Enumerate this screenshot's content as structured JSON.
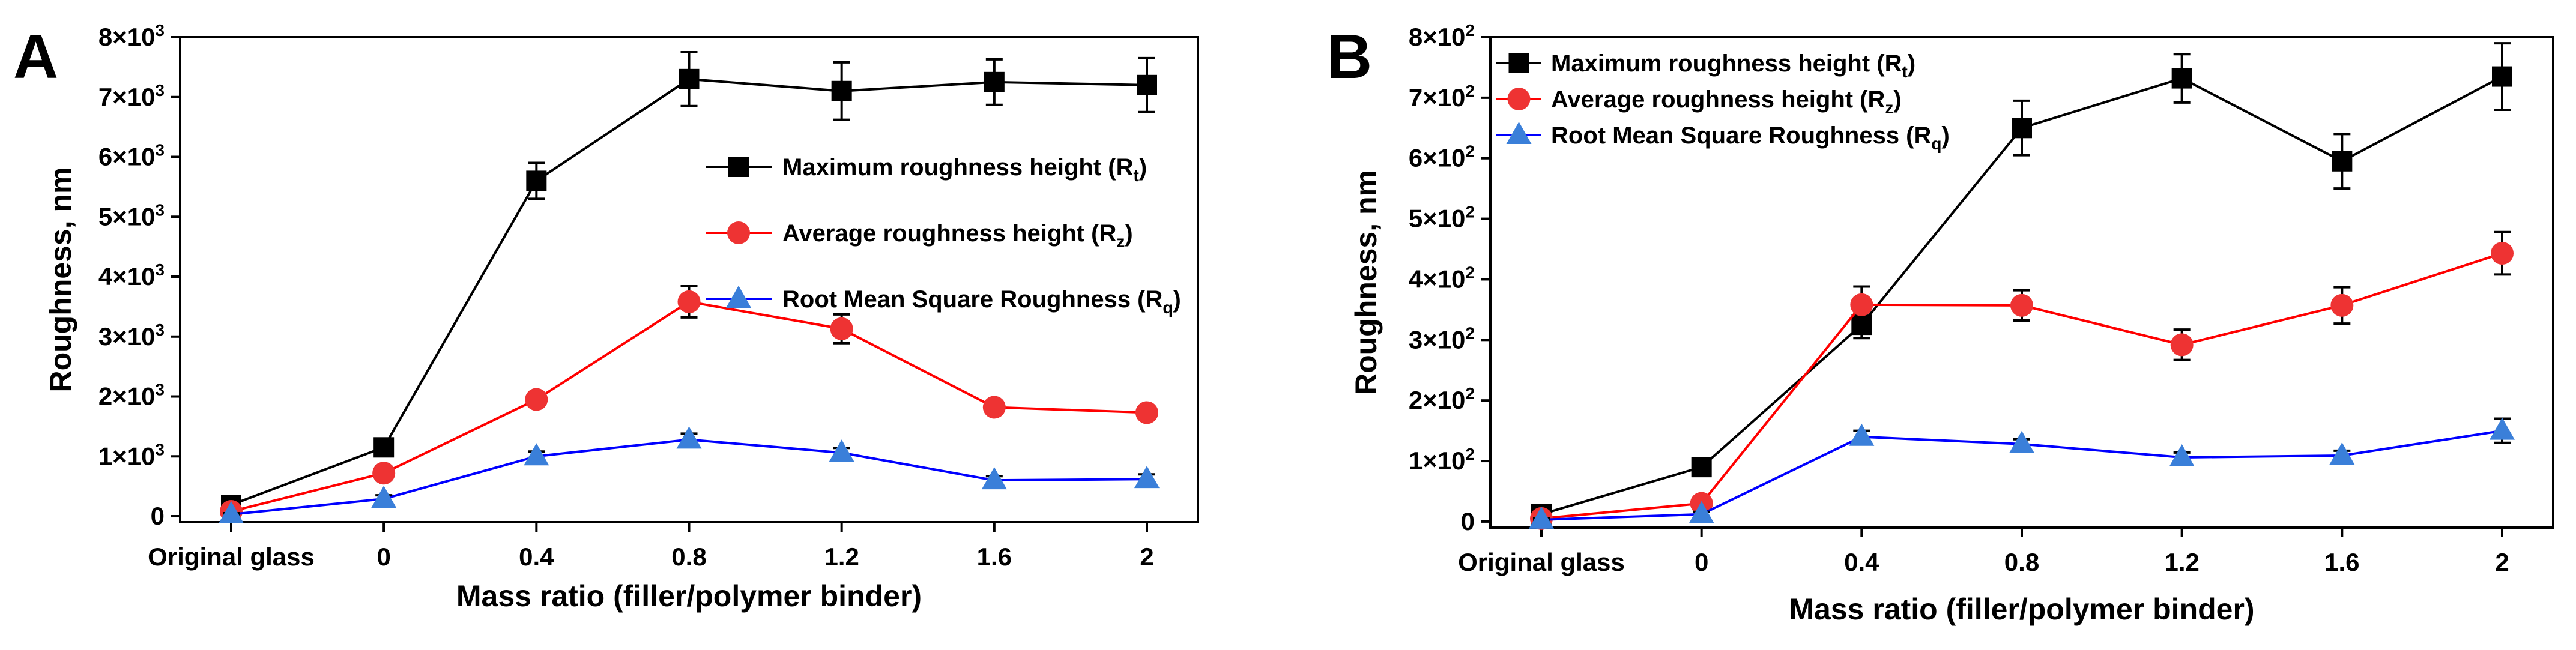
{
  "chart_data": [
    {
      "panel": "A",
      "type": "line",
      "title": "",
      "xlabel": "Mass ratio (filler/polymer binder)",
      "ylabel": "Roughness, nm",
      "categories": [
        "Original glass",
        "0",
        "0.4",
        "0.8",
        "1.2",
        "1.6",
        "2"
      ],
      "ylim": [
        -100,
        8000
      ],
      "ymax_scale": 1000,
      "yticks": [
        0,
        1000,
        2000,
        3000,
        4000,
        5000,
        6000,
        7000,
        8000
      ],
      "ytick_labels": [
        {
          "base": "0",
          "exp": ""
        },
        {
          "base": "1×10",
          "exp": "3"
        },
        {
          "base": "2×10",
          "exp": "3"
        },
        {
          "base": "3×10",
          "exp": "3"
        },
        {
          "base": "4×10",
          "exp": "3"
        },
        {
          "base": "5×10",
          "exp": "3"
        },
        {
          "base": "6×10",
          "exp": "3"
        },
        {
          "base": "7×10",
          "exp": "3"
        },
        {
          "base": "8×10",
          "exp": "3"
        }
      ],
      "legend_placement": "center-right",
      "series": [
        {
          "name": "Maximum roughness height",
          "sub": "t",
          "marker": "square",
          "color": "#000000",
          "marker_color": "#000000",
          "values": [
            190,
            1150,
            5600,
            7300,
            7100,
            7250,
            7200
          ],
          "errors": [
            60,
            100,
            300,
            450,
            480,
            380,
            450
          ]
        },
        {
          "name": "Average roughness height",
          "sub": "z",
          "marker": "circle",
          "color": "#ff0000",
          "marker_color": "#ee3333",
          "values": [
            80,
            720,
            1950,
            3580,
            3130,
            1820,
            1730
          ],
          "errors": [
            40,
            120,
            100,
            260,
            240,
            100,
            100
          ]
        },
        {
          "name": "Root Mean Square Roughness",
          "sub": "q",
          "marker": "triangle",
          "color": "#0000ff",
          "marker_color": "#3a7fd9",
          "values": [
            30,
            290,
            1000,
            1280,
            1060,
            600,
            620
          ],
          "errors": [
            20,
            60,
            80,
            100,
            80,
            70,
            80
          ]
        }
      ]
    },
    {
      "panel": "B",
      "type": "line",
      "title": "",
      "xlabel": "Mass ratio (filler/polymer binder)",
      "ylabel": "Roughness, nm",
      "categories": [
        "Original glass",
        "0",
        "0.4",
        "0.8",
        "1.2",
        "1.6",
        "2"
      ],
      "ylim": [
        -10,
        800
      ],
      "yticks": [
        0,
        100,
        200,
        300,
        400,
        500,
        600,
        700,
        800
      ],
      "ytick_labels": [
        {
          "base": "0",
          "exp": ""
        },
        {
          "base": "1×10",
          "exp": "2"
        },
        {
          "base": "2×10",
          "exp": "2"
        },
        {
          "base": "3×10",
          "exp": "2"
        },
        {
          "base": "4×10",
          "exp": "2"
        },
        {
          "base": "5×10",
          "exp": "2"
        },
        {
          "base": "6×10",
          "exp": "2"
        },
        {
          "base": "7×10",
          "exp": "2"
        },
        {
          "base": "8×10",
          "exp": "2"
        }
      ],
      "legend_placement": "top-left",
      "series": [
        {
          "name": "Maximum roughness height",
          "sub": "t",
          "marker": "square",
          "color": "#000000",
          "marker_color": "#000000",
          "values": [
            12,
            90,
            325,
            650,
            732,
            595,
            735
          ],
          "errors": [
            6,
            8,
            22,
            45,
            40,
            45,
            55
          ]
        },
        {
          "name": "Average roughness height",
          "sub": "z",
          "marker": "circle",
          "color": "#ff0000",
          "marker_color": "#ee3333",
          "values": [
            5,
            30,
            358,
            357,
            292,
            357,
            443
          ],
          "errors": [
            4,
            10,
            30,
            25,
            25,
            30,
            35
          ]
        },
        {
          "name": "Root Mean Square Roughness",
          "sub": "q",
          "marker": "triangle",
          "color": "#0000ff",
          "marker_color": "#3a7fd9",
          "values": [
            3,
            12,
            140,
            128,
            106,
            109,
            150
          ],
          "errors": [
            2,
            4,
            10,
            8,
            8,
            8,
            20
          ]
        }
      ]
    }
  ]
}
